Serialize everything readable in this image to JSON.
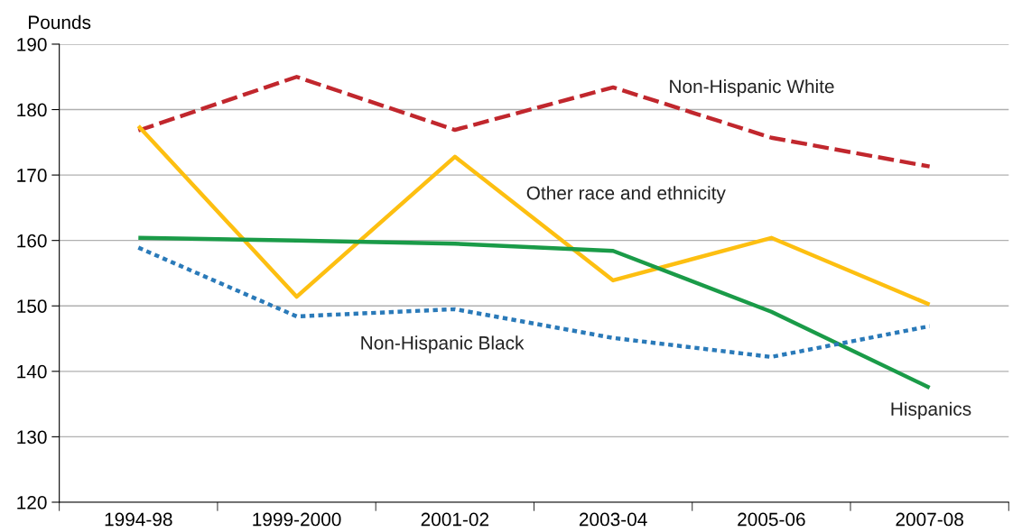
{
  "chart_data": {
    "type": "line",
    "ylabel": "Pounds",
    "categories": [
      "1994-98",
      "1999-2000",
      "2001-02",
      "2003-04",
      "2005-06",
      "2007-08"
    ],
    "series": [
      {
        "name": "Non-Hispanic White",
        "color": "#c1272d",
        "line_style": "dashed",
        "values": [
          176.8,
          185.0,
          176.9,
          183.4,
          175.7,
          171.3
        ]
      },
      {
        "name": "Other race and ethnicity",
        "color": "#fdbf11",
        "line_style": "solid",
        "values": [
          177.5,
          151.4,
          172.8,
          153.9,
          160.4,
          150.2
        ]
      },
      {
        "name": "Hispanics",
        "color": "#1a9b48",
        "line_style": "solid",
        "values": [
          160.4,
          160.0,
          159.5,
          158.4,
          149.1,
          137.5
        ]
      },
      {
        "name": "Non-Hispanic Black",
        "color": "#2a7ab9",
        "line_style": "dotted",
        "values": [
          158.9,
          148.4,
          149.5,
          145.1,
          142.2,
          146.9
        ]
      }
    ],
    "ylim": [
      120,
      190
    ],
    "yticks": [
      120,
      130,
      140,
      150,
      160,
      170,
      180,
      190
    ],
    "grid": "y",
    "marker": "none",
    "legend": false
  }
}
